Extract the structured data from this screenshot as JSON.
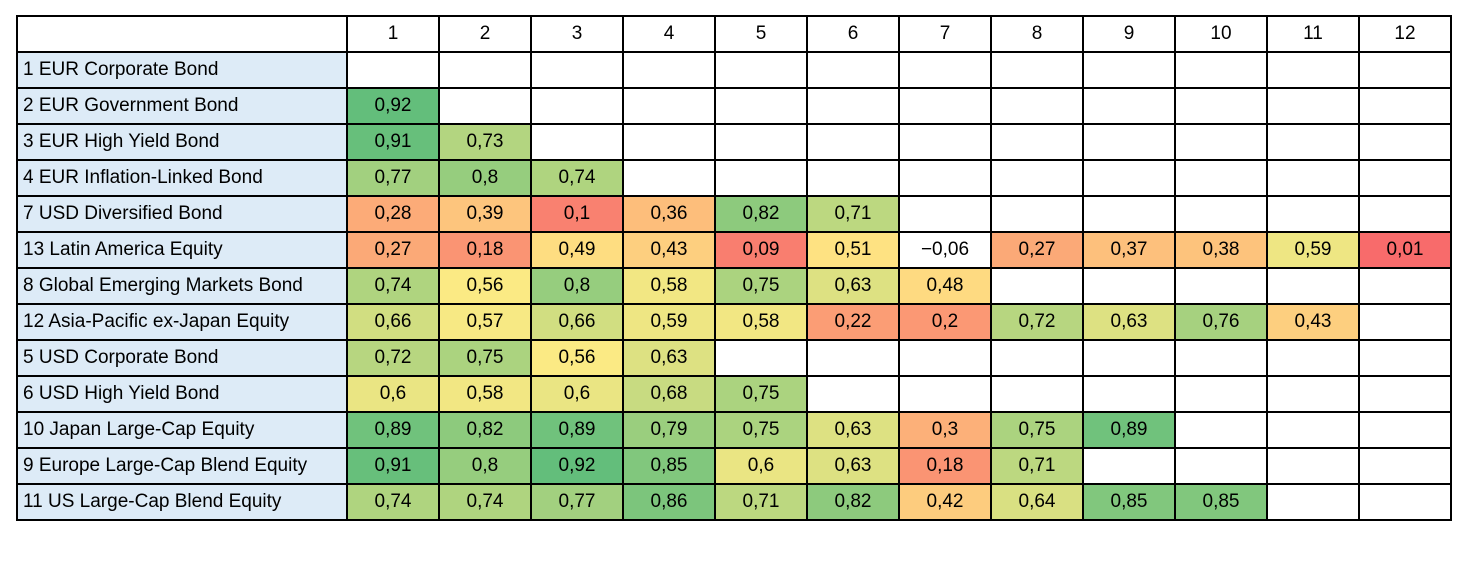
{
  "chart_data": {
    "type": "heatmap",
    "columns": [
      "1",
      "2",
      "3",
      "4",
      "5",
      "6",
      "7",
      "8",
      "9",
      "10",
      "11",
      "12"
    ],
    "rows": [
      {
        "label": "1 EUR Corporate Bond",
        "values": [
          null,
          null,
          null,
          null,
          null,
          null,
          null,
          null,
          null,
          null,
          null,
          null
        ]
      },
      {
        "label": "2 EUR Government Bond",
        "values": [
          0.92,
          null,
          null,
          null,
          null,
          null,
          null,
          null,
          null,
          null,
          null,
          null
        ]
      },
      {
        "label": "3 EUR High Yield Bond",
        "values": [
          0.91,
          0.73,
          null,
          null,
          null,
          null,
          null,
          null,
          null,
          null,
          null,
          null
        ]
      },
      {
        "label": "4 EUR Inflation-Linked Bond",
        "values": [
          0.77,
          0.8,
          0.74,
          null,
          null,
          null,
          null,
          null,
          null,
          null,
          null,
          null
        ]
      },
      {
        "label": "7 USD Diversified Bond",
        "values": [
          0.28,
          0.39,
          0.1,
          0.36,
          0.82,
          0.71,
          null,
          null,
          null,
          null,
          null,
          null
        ]
      },
      {
        "label": "13 Latin America Equity",
        "values": [
          0.27,
          0.18,
          0.49,
          0.43,
          0.09,
          0.51,
          -0.06,
          0.27,
          0.37,
          0.38,
          0.59,
          0.01
        ]
      },
      {
        "label": "8 Global Emerging Markets Bond",
        "values": [
          0.74,
          0.56,
          0.8,
          0.58,
          0.75,
          0.63,
          0.48,
          null,
          null,
          null,
          null,
          null
        ]
      },
      {
        "label": "12 Asia-Pacific ex-Japan Equity",
        "values": [
          0.66,
          0.57,
          0.66,
          0.59,
          0.58,
          0.22,
          0.2,
          0.72,
          0.63,
          0.76,
          0.43,
          null
        ]
      },
      {
        "label": "5 USD Corporate Bond",
        "values": [
          0.72,
          0.75,
          0.56,
          0.63,
          null,
          null,
          null,
          null,
          null,
          null,
          null,
          null
        ]
      },
      {
        "label": "6 USD High Yield Bond",
        "values": [
          0.6,
          0.58,
          0.6,
          0.68,
          0.75,
          null,
          null,
          null,
          null,
          null,
          null,
          null
        ]
      },
      {
        "label": "10 Japan Large-Cap Equity",
        "values": [
          0.89,
          0.82,
          0.89,
          0.79,
          0.75,
          0.63,
          0.3,
          0.75,
          0.89,
          null,
          null,
          null
        ]
      },
      {
        "label": "9 Europe Large-Cap Blend Equity",
        "values": [
          0.91,
          0.8,
          0.92,
          0.85,
          0.6,
          0.63,
          0.18,
          0.71,
          null,
          null,
          null,
          null
        ]
      },
      {
        "label": "11 US Large-Cap Blend Equity",
        "values": [
          0.74,
          0.74,
          0.77,
          0.86,
          0.71,
          0.82,
          0.42,
          0.64,
          0.85,
          0.85,
          null,
          null
        ]
      }
    ],
    "color_scale": {
      "low": "#f8696b",
      "mid": "#ffeb84",
      "high": "#63be7b",
      "negative": "#ffffff"
    },
    "number_format": {
      "decimal_separator": ",",
      "minus_sign": "−"
    }
  }
}
